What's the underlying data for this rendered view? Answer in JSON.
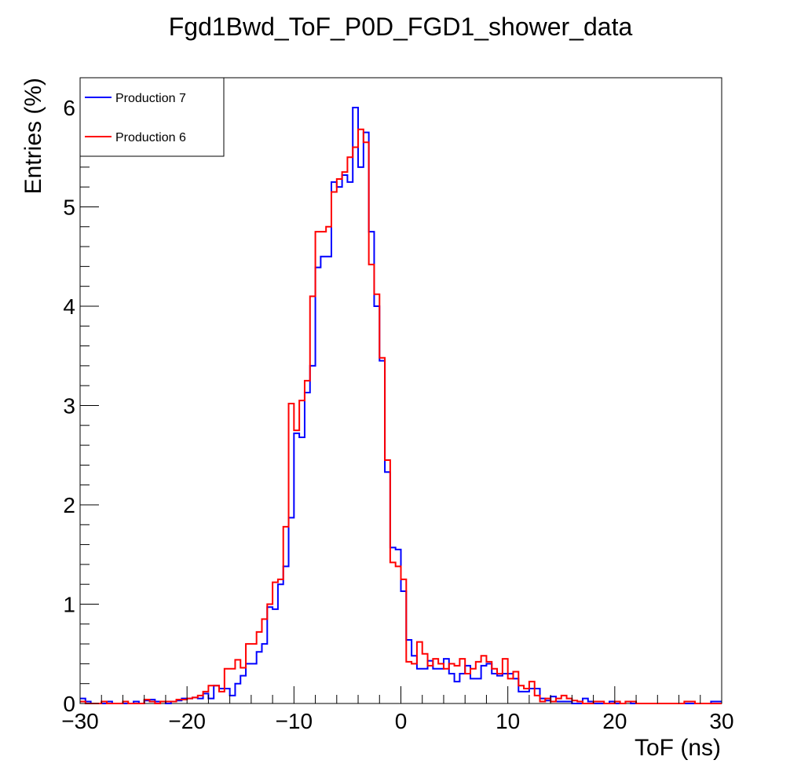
{
  "chart_data": {
    "type": "line",
    "title": "Fgd1Bwd_ToF_P0D_FGD1_shower_data",
    "xlabel": "ToF (ns)",
    "ylabel": "Entries (%)",
    "xlim": [
      -30,
      30
    ],
    "ylim": [
      0,
      6.3
    ],
    "x_ticks": [
      -30,
      -20,
      -10,
      0,
      10,
      20,
      30
    ],
    "x_tick_labels": [
      "−30",
      "−20",
      "−10",
      "0",
      "10",
      "20",
      "30"
    ],
    "y_ticks": [
      0,
      1,
      2,
      3,
      4,
      5,
      6
    ],
    "y_tick_labels": [
      "0",
      "1",
      "2",
      "3",
      "4",
      "5",
      "6"
    ],
    "grid": false,
    "legend_position": "top-left",
    "bin_width": 0.5,
    "x_start": -30,
    "series": [
      {
        "name": "Production 7",
        "color": "#0000ff",
        "values": [
          0.05,
          0.02,
          0,
          0,
          0,
          0.02,
          0,
          0,
          0,
          0,
          0.02,
          0,
          0.03,
          0.04,
          0.02,
          0.02,
          0,
          0.02,
          0.03,
          0.05,
          0.05,
          0.06,
          0.05,
          0.1,
          0.05,
          0.18,
          0.15,
          0.15,
          0.08,
          0.2,
          0.28,
          0.4,
          0.4,
          0.52,
          0.6,
          0.97,
          0.95,
          1.2,
          1.38,
          1.87,
          2.72,
          2.68,
          3.13,
          3.4,
          4.39,
          4.5,
          4.5,
          5.25,
          5.2,
          5.32,
          5.25,
          6.0,
          5.4,
          5.75,
          4.75,
          4.0,
          3.45,
          2.33,
          1.57,
          1.55,
          1.13,
          0.64,
          0.48,
          0.35,
          0.35,
          0.43,
          0.35,
          0.35,
          0.45,
          0.3,
          0.22,
          0.3,
          0.38,
          0.25,
          0.25,
          0.38,
          0.4,
          0.3,
          0.28,
          0.3,
          0.3,
          0.25,
          0.12,
          0.12,
          0.15,
          0.15,
          0.05,
          0.03,
          0.07,
          0.02,
          0.02,
          0.02,
          0,
          0,
          0.05,
          0.02,
          0,
          0,
          0,
          0.02,
          0,
          0,
          0.02,
          0,
          0,
          0,
          0,
          0,
          0,
          0,
          0,
          0,
          0,
          0,
          0,
          0,
          0,
          0,
          0.02,
          0.02
        ]
      },
      {
        "name": "Production 6",
        "color": "#ff0000",
        "values": [
          0.02,
          0,
          0,
          0,
          0.02,
          0,
          0,
          0,
          0.02,
          0,
          0,
          0,
          0.04,
          0.02,
          0,
          0.02,
          0.02,
          0.02,
          0.04,
          0.04,
          0.05,
          0.06,
          0.08,
          0.12,
          0.18,
          0.18,
          0.12,
          0.35,
          0.35,
          0.44,
          0.36,
          0.6,
          0.6,
          0.72,
          0.85,
          1.0,
          1.22,
          1.25,
          1.78,
          3.02,
          2.75,
          3.05,
          3.25,
          4.1,
          4.75,
          4.75,
          4.8,
          5.15,
          5.28,
          5.35,
          5.5,
          5.6,
          5.78,
          5.65,
          4.42,
          4.12,
          3.48,
          2.45,
          1.42,
          1.38,
          1.25,
          0.42,
          0.4,
          0.62,
          0.5,
          0.38,
          0.45,
          0.4,
          0.35,
          0.4,
          0.38,
          0.45,
          0.3,
          0.35,
          0.42,
          0.48,
          0.42,
          0.35,
          0.3,
          0.45,
          0.25,
          0.32,
          0.18,
          0.15,
          0.22,
          0.08,
          0.02,
          0.05,
          0.02,
          0.05,
          0.08,
          0.05,
          0.03,
          0.02,
          0,
          0,
          0.02,
          0.02,
          0,
          0,
          0.02,
          0,
          0.02,
          0.02,
          0,
          0,
          0,
          0,
          0,
          0,
          0,
          0,
          0,
          0.02,
          0.02,
          0,
          0,
          0,
          0,
          0
        ]
      }
    ]
  }
}
